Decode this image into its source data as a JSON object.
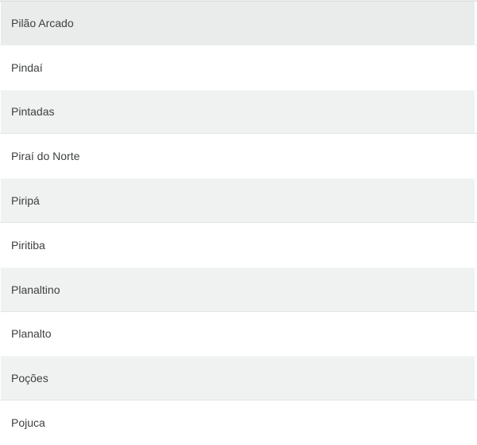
{
  "list": {
    "items": [
      "Pilão Arcado",
      "Pindaí",
      "Pintadas",
      "Piraí do Norte",
      "Piripá",
      "Piritiba",
      "Planaltino",
      "Planalto",
      "Poções",
      "Pojuca"
    ],
    "highlighted_item": "Pilão Arcado"
  },
  "colors": {
    "row_stripe": "#f0f1f1",
    "row_highlight": "#eaebeb",
    "row_white": "#ffffff",
    "text": "#3e4041",
    "top_border": "#d9dada"
  }
}
